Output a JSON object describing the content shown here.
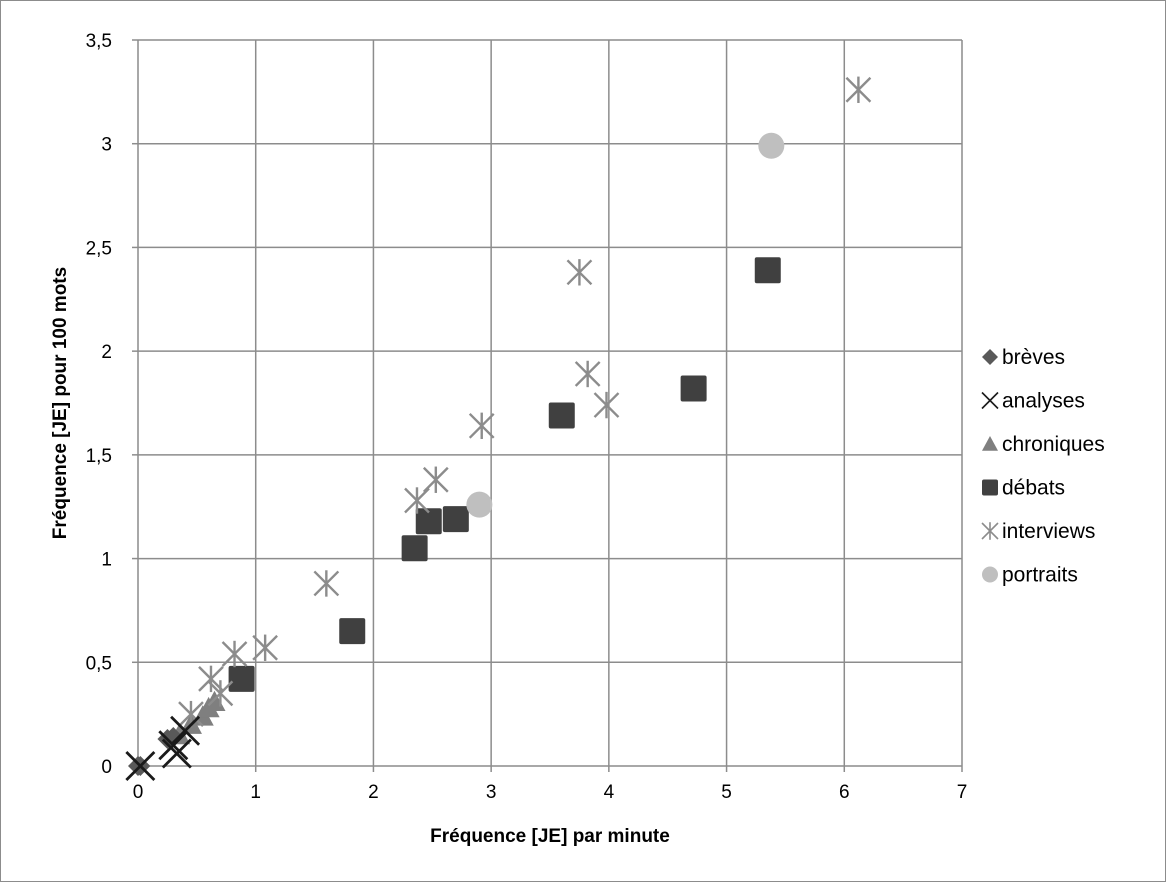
{
  "chart_data": {
    "type": "scatter",
    "title": "",
    "xlabel": "Fréquence [JE] par minute",
    "ylabel": "Fréquence [JE] pour 100 mots",
    "xlim": [
      0,
      7
    ],
    "ylim": [
      0,
      3.5
    ],
    "x_ticks": [
      "0",
      "1",
      "2",
      "3",
      "4",
      "5",
      "6",
      "7"
    ],
    "y_ticks": [
      "0",
      "0,5",
      "1",
      "1,5",
      "2",
      "2,5",
      "3",
      "3,5"
    ],
    "grid": true,
    "legend_position": "right",
    "series": [
      {
        "name": "brèves",
        "marker": "diamond",
        "color": "#595959",
        "points": [
          [
            0.0,
            0.0
          ],
          [
            0.02,
            0.0
          ],
          [
            0.25,
            0.13
          ],
          [
            0.3,
            0.14
          ]
        ]
      },
      {
        "name": "analyses",
        "marker": "x",
        "color": "#1a1a1a",
        "points": [
          [
            0.3,
            0.1
          ],
          [
            0.33,
            0.06
          ],
          [
            0.4,
            0.17
          ],
          [
            0.02,
            0.0
          ]
        ]
      },
      {
        "name": "chroniques",
        "marker": "triangle",
        "color": "#7f7f7f",
        "points": [
          [
            0.35,
            0.15
          ],
          [
            0.45,
            0.2
          ],
          [
            0.55,
            0.24
          ],
          [
            0.6,
            0.28
          ],
          [
            0.65,
            0.31
          ]
        ]
      },
      {
        "name": "débats",
        "marker": "square",
        "color": "#404040",
        "points": [
          [
            0.88,
            0.42
          ],
          [
            1.82,
            0.65
          ],
          [
            2.35,
            1.05
          ],
          [
            2.47,
            1.18
          ],
          [
            2.7,
            1.19
          ],
          [
            3.6,
            1.69
          ],
          [
            4.72,
            1.82
          ],
          [
            5.35,
            2.39
          ]
        ]
      },
      {
        "name": "interviews",
        "marker": "star",
        "color": "#8c8c8c",
        "points": [
          [
            0.45,
            0.25
          ],
          [
            0.62,
            0.42
          ],
          [
            0.7,
            0.35
          ],
          [
            0.82,
            0.54
          ],
          [
            1.08,
            0.57
          ],
          [
            1.6,
            0.88
          ],
          [
            2.37,
            1.28
          ],
          [
            2.53,
            1.38
          ],
          [
            2.92,
            1.64
          ],
          [
            3.75,
            2.38
          ],
          [
            3.82,
            1.89
          ],
          [
            3.98,
            1.74
          ],
          [
            6.12,
            3.26
          ]
        ]
      },
      {
        "name": "portraits",
        "marker": "circle",
        "color": "#bfbfbf",
        "points": [
          [
            2.9,
            1.26
          ],
          [
            5.38,
            2.99
          ]
        ]
      }
    ]
  }
}
